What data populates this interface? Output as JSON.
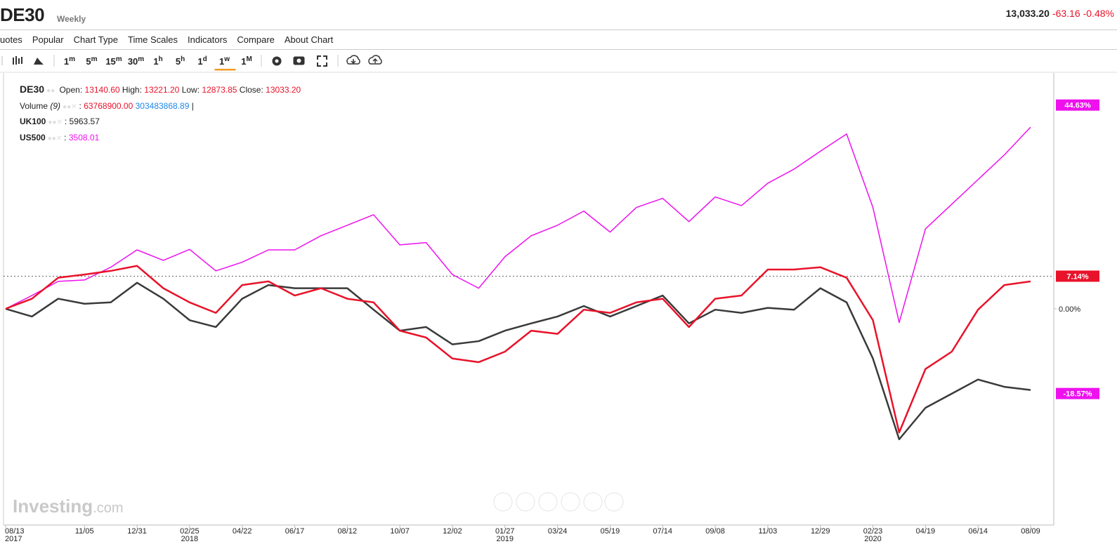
{
  "header": {
    "symbol": "DE30",
    "interval": "Weekly",
    "price": "13,033.20",
    "change": "-63.16",
    "change_pct": "-0.48%"
  },
  "menu": [
    "uotes",
    "Popular",
    "Chart Type",
    "Time Scales",
    "Indicators",
    "Compare",
    "About Chart"
  ],
  "toolbar": {
    "intervals": [
      {
        "value": "1",
        "unit": "m"
      },
      {
        "value": "5",
        "unit": "m"
      },
      {
        "value": "15",
        "unit": "m"
      },
      {
        "value": "30",
        "unit": "m"
      },
      {
        "value": "1",
        "unit": "h"
      },
      {
        "value": "5",
        "unit": "h"
      },
      {
        "value": "1",
        "unit": "d"
      },
      {
        "value": "1",
        "unit": "w"
      },
      {
        "value": "1",
        "unit": "M"
      }
    ],
    "selected": 7
  },
  "legend": {
    "main": {
      "name": "DE30",
      "open_label": "Open:",
      "open": "13140.60",
      "high_label": "High:",
      "high": "13221.20",
      "low_label": "Low:",
      "low": "12873.85",
      "close_label": "Close:",
      "close": "13033.20"
    },
    "volume": {
      "name": "Volume",
      "param": "(9)",
      "sep": ":",
      "value1": "63768900.00",
      "value2": "303483868.89",
      "end": "|"
    },
    "uk100": {
      "name": "UK100",
      "sep": ":",
      "value": "5963.57"
    },
    "us500": {
      "name": "US500",
      "sep": ":",
      "value": "3508.01"
    }
  },
  "watermark": {
    "brand": "Investing",
    "domain": ".com"
  },
  "chart_data": {
    "type": "line",
    "categories": [
      "08/13",
      null,
      null,
      "11/05",
      null,
      "12/31",
      null,
      "02/25",
      null,
      "04/22",
      null,
      "06/17",
      null,
      "08/12",
      null,
      "10/07",
      null,
      "12/02",
      null,
      "01/27",
      null,
      "03/24",
      null,
      "05/19",
      null,
      "07/14",
      null,
      "09/08",
      null,
      "11/03",
      null,
      "12/29",
      null,
      "02/23",
      null,
      "04/19",
      null,
      "06/14",
      null,
      "08/09"
    ],
    "year_labels": [
      "2017",
      null,
      null,
      null,
      null,
      null,
      null,
      "2018",
      null,
      null,
      null,
      null,
      null,
      null,
      null,
      null,
      null,
      null,
      null,
      "2019",
      null,
      null,
      null,
      null,
      null,
      null,
      null,
      null,
      null,
      null,
      null,
      null,
      null,
      "2020",
      null,
      null,
      null,
      null,
      null,
      null
    ],
    "series": [
      {
        "name": "US500",
        "color": "#ee11ee",
        "width": 1.5,
        "values": [
          0,
          2.9,
          6,
          6.3,
          9.1,
          12.9,
          10.6,
          13,
          8.3,
          10.2,
          12.9,
          12.9,
          16,
          18.3,
          20.6,
          14,
          14.5,
          7.5,
          4.5,
          11.4,
          16,
          18.3,
          21.4,
          16.8,
          22.2,
          24.2,
          19.1,
          24.5,
          22.6,
          27.5,
          30.6,
          34.5,
          38.3,
          22.2,
          -3,
          17.5,
          22.9,
          28.3,
          33.7,
          39.8
        ],
        "end_tag": {
          "value": 44.63,
          "label": "44.63%",
          "color": "#ee11ee"
        }
      },
      {
        "name": "UK100",
        "color": "#3a3a3a",
        "width": 2.5,
        "values": [
          0,
          -1.7,
          2.2,
          1.1,
          1.4,
          5.7,
          2.2,
          -2.5,
          -4,
          2.2,
          5.2,
          4.5,
          4.5,
          4.5,
          -0.2,
          -4.8,
          -4,
          -7.8,
          -7.1,
          -4.8,
          -3.2,
          -1.7,
          0.6,
          -1.7,
          0.6,
          2.9,
          -3.2,
          -0.2,
          -0.9,
          0.2,
          -0.2,
          4.5,
          1.4,
          -10.9,
          -28.6,
          -21.7,
          -18.6,
          -15.5,
          -17.1,
          -17.8
        ],
        "end_tag": {
          "value": -18.57,
          "label": "-18.57%",
          "color": "#ee11ee"
        }
      },
      {
        "name": "DE30",
        "color": "#e8132a",
        "width": 2.5,
        "values": [
          0,
          2.2,
          6.8,
          7.5,
          8.3,
          9.4,
          4.5,
          1.4,
          -0.9,
          5.2,
          6,
          2.9,
          4.5,
          2.2,
          1.4,
          -4.8,
          -6.3,
          -10.9,
          -11.7,
          -9.4,
          -4.8,
          -5.5,
          -0.2,
          -0.9,
          1.4,
          2.2,
          -4,
          2.2,
          2.9,
          8.6,
          8.6,
          9.1,
          6.8,
          -2.5,
          -27.1,
          -13.2,
          -9.4,
          -0.2,
          5.2,
          6
        ],
        "end_tag": {
          "value": 7.14,
          "label": "7.14%",
          "color": "#e8132a"
        },
        "price_line": true
      }
    ],
    "ylim": [
      -40,
      51.5
    ],
    "yticks": [
      {
        "value": 0,
        "label": "0.00%"
      }
    ]
  }
}
